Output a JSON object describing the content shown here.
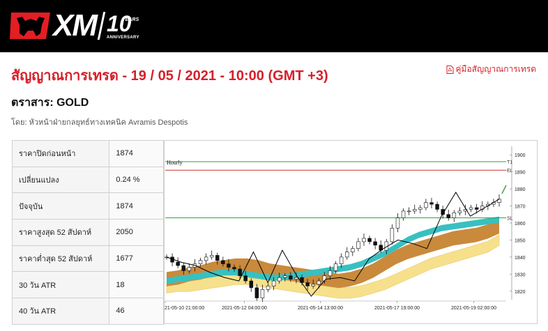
{
  "brand": {
    "name": "XM",
    "anniversary_number": "10",
    "anniversary_years": "YEARS",
    "anniversary_text": "ANNIVERSARY",
    "colors": {
      "header_bg": "#000000",
      "logo_red": "#e31e24",
      "accent_red": "#d5202a"
    }
  },
  "page": {
    "title": "สัญญาณการเทรด - 19 / 05 / 2021 - 10:00 (GMT +3)",
    "guide_link": "คู่มือสัญญาณการเทรด",
    "instrument": "ตราสาร: GOLD",
    "byline": "โดย: หัวหน้าฝ่ายกลยุทธ์ทางเทคนิค Avramis Despotis"
  },
  "stats": [
    {
      "label": "ราคาปิดก่อนหน้า",
      "value": "1874"
    },
    {
      "label": "เปลี่ยนแปลง",
      "value": "0.24 %"
    },
    {
      "label": "ปัจจุบัน",
      "value": "1874"
    },
    {
      "label": "ราคาสูงสุด 52 สัปดาห์",
      "value": "2050"
    },
    {
      "label": "ราคาต่ำสุด 52 สัปดาห์",
      "value": "1677"
    },
    {
      "label": "30 วัน ATR",
      "value": "18"
    },
    {
      "label": "40 วัน ATR",
      "value": "46"
    }
  ],
  "chart_data": {
    "type": "line",
    "title": "Hourly",
    "xlabel": "",
    "ylabel": "",
    "ylim": [
      1815,
      1905
    ],
    "y_ticks": [
      1820,
      1830,
      1840,
      1850,
      1860,
      1870,
      1880,
      1890,
      1900
    ],
    "x_ticks": [
      "21-05-10 21:00:00",
      "2021-05-12 04:00:00",
      "2021-05-14 13:00:00",
      "2021-05-17 19:00:00",
      "2021-05-19 02:00:00"
    ],
    "levels": [
      {
        "name": "T1",
        "value": 1896,
        "color": "#2e9e3a"
      },
      {
        "name": "EL",
        "value": 1891,
        "color": "#c0392b"
      },
      {
        "name": "SL",
        "value": 1863,
        "color": "#2e9e3a"
      }
    ],
    "series": [
      {
        "values": [
          1840,
          1837,
          1835,
          1832,
          1834,
          1836,
          1838,
          1840,
          1841,
          1838,
          1836,
          1834,
          1833,
          1829,
          1826,
          1822,
          1816,
          1821,
          1823,
          1826,
          1828,
          1829,
          1827,
          1828,
          1825,
          1823,
          1824,
          1826,
          1829,
          1832,
          1836,
          1840,
          1843,
          1845,
          1849,
          1851,
          1849,
          1847,
          1844,
          1849,
          1857,
          1863,
          1867,
          1867,
          1868,
          1869,
          1872,
          1871,
          1868,
          1865,
          1863,
          1866,
          1867,
          1868,
          1869,
          1868,
          1870,
          1871,
          1872,
          1874
        ]
      },
      {
        "values": [
          1840,
          1837,
          1835,
          1831,
          1828,
          1826,
          1843,
          1825,
          1844,
          1829,
          1817,
          1827,
          1828,
          1826,
          1839,
          1845,
          1850,
          1848,
          1845,
          1864,
          1878,
          1864,
          1869,
          1874
        ]
      },
      {
        "values": [
          1826,
          1827,
          1828,
          1829,
          1830,
          1831,
          1831,
          1830,
          1829,
          1828,
          1828,
          1829,
          1830,
          1831,
          1832,
          1833,
          1834,
          1836,
          1839,
          1842,
          1846,
          1850,
          1853,
          1855,
          1857,
          1858,
          1859,
          1860,
          1861,
          1862
        ]
      },
      {
        "values": [
          1827,
          1828,
          1830,
          1831,
          1833,
          1834,
          1835,
          1835,
          1834,
          1832,
          1831,
          1830,
          1829,
          1828,
          1827,
          1826,
          1827,
          1829,
          1832,
          1836,
          1840,
          1843,
          1845,
          1847,
          1849,
          1851,
          1852,
          1853,
          1855,
          1858
        ]
      },
      {
        "values": [
          1822,
          1823,
          1823,
          1824,
          1825,
          1826,
          1827,
          1827,
          1826,
          1825,
          1824,
          1823,
          1822,
          1821,
          1820,
          1819,
          1819,
          1820,
          1822,
          1824,
          1827,
          1830,
          1833,
          1836,
          1838,
          1840,
          1842,
          1844,
          1846,
          1850
        ]
      }
    ]
  }
}
